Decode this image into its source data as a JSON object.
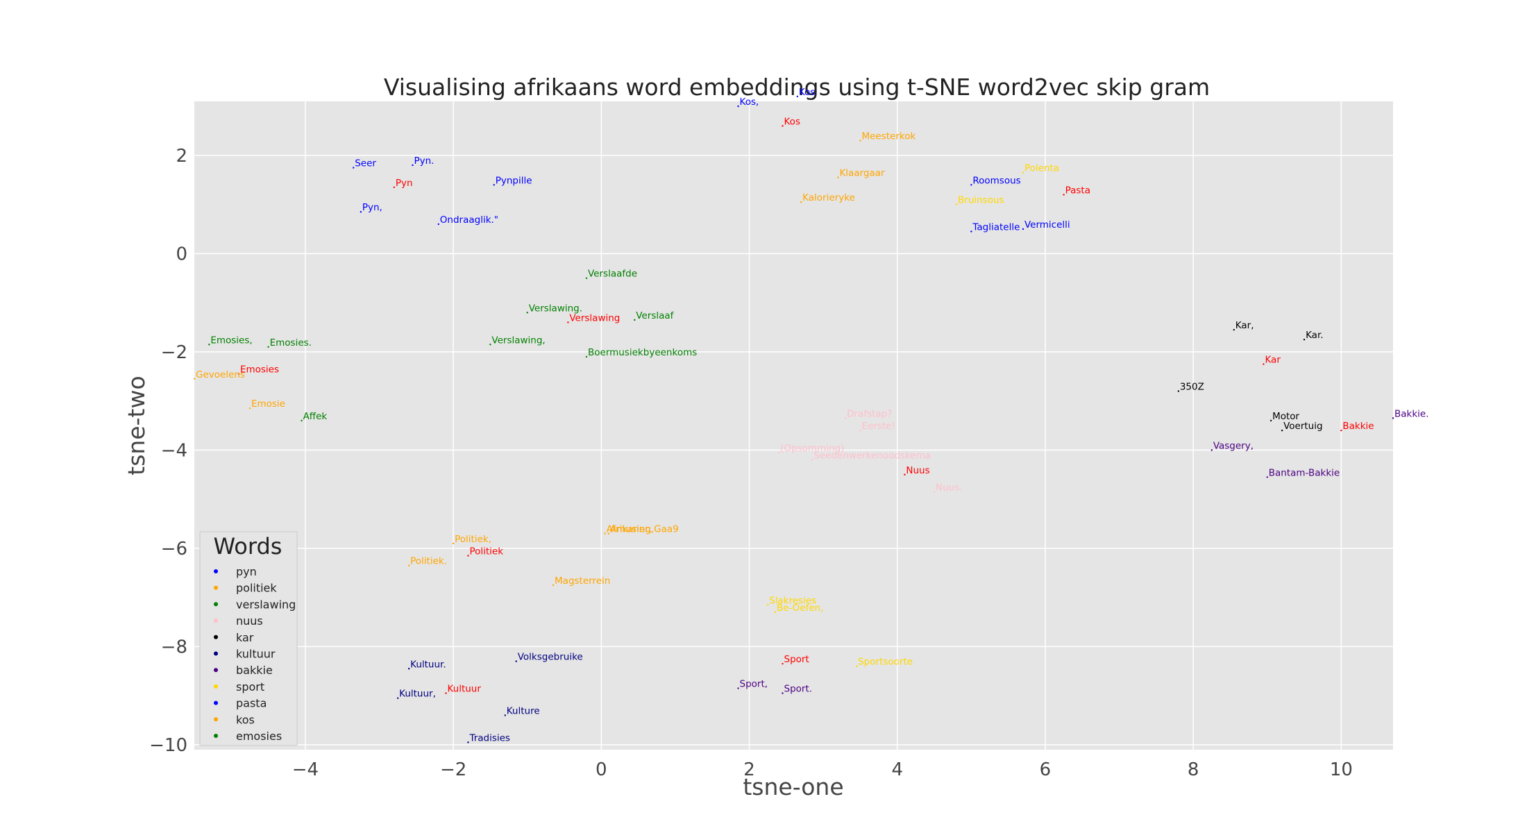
{
  "chart_data": {
    "type": "scatter",
    "title": "Visualising afrikaans word embeddings using t-SNE word2vec skip gram",
    "xlabel": "tsne-one",
    "ylabel": "tsne-two",
    "xlim": [
      -5.5,
      10.7
    ],
    "ylim": [
      -10.1,
      3.1
    ],
    "xticks": [
      -4,
      -2,
      0,
      2,
      4,
      6,
      8,
      10
    ],
    "yticks": [
      2,
      0,
      -2,
      -4,
      -6,
      -8,
      -10
    ],
    "xtick_labels": [
      "−4",
      "−2",
      "0",
      "2",
      "4",
      "6",
      "8",
      "10"
    ],
    "ytick_labels": [
      "2",
      "0",
      "−2",
      "−4",
      "−6",
      "−8",
      "−10"
    ],
    "grid": true,
    "background": "#e5e5e5",
    "legend": {
      "title": "Words",
      "position": "lower-left",
      "entries": [
        {
          "name": "pyn",
          "color": "#0000ff"
        },
        {
          "name": "politiek",
          "color": "#ffa500"
        },
        {
          "name": "verslawing",
          "color": "#008000"
        },
        {
          "name": "nuus",
          "color": "#ffc0cb"
        },
        {
          "name": "kar",
          "color": "#000000"
        },
        {
          "name": "kultuur",
          "color": "#000080"
        },
        {
          "name": "bakkie",
          "color": "#4b0082"
        },
        {
          "name": "sport",
          "color": "#ffd700"
        },
        {
          "name": "pasta",
          "color": "#0000ff"
        },
        {
          "name": "kos",
          "color": "#ffa500"
        },
        {
          "name": "emosies",
          "color": "#008000"
        }
      ]
    },
    "points": [
      {
        "label": "Kos,",
        "x": 1.85,
        "y": 3.0,
        "color": "#0000ff"
      },
      {
        "label": "Kos",
        "x": 2.65,
        "y": 3.2,
        "color": "#0000ff"
      },
      {
        "label": "Kos",
        "x": 2.45,
        "y": 2.6,
        "color": "#ff0000"
      },
      {
        "label": "Meesterkok",
        "x": 3.5,
        "y": 2.3,
        "color": "#ffa500"
      },
      {
        "label": "Seer",
        "x": -3.35,
        "y": 1.75,
        "color": "#0000ff"
      },
      {
        "label": "Pyn.",
        "x": -2.55,
        "y": 1.8,
        "color": "#0000ff"
      },
      {
        "label": "Pyn",
        "x": -2.8,
        "y": 1.35,
        "color": "#ff0000"
      },
      {
        "label": "Pynpille",
        "x": -1.45,
        "y": 1.4,
        "color": "#0000ff"
      },
      {
        "label": "Pyn,",
        "x": -3.25,
        "y": 0.85,
        "color": "#0000ff"
      },
      {
        "label": "Ondraaglik.\"",
        "x": -2.2,
        "y": 0.6,
        "color": "#0000ff"
      },
      {
        "label": "Klaargaar",
        "x": 3.2,
        "y": 1.55,
        "color": "#ffa500"
      },
      {
        "label": "Kalorieryke",
        "x": 2.7,
        "y": 1.05,
        "color": "#ffa500"
      },
      {
        "label": "Roomsous",
        "x": 5.0,
        "y": 1.4,
        "color": "#0000ff"
      },
      {
        "label": "Polenta",
        "x": 5.7,
        "y": 1.65,
        "color": "#ffd700"
      },
      {
        "label": "Bruinsous",
        "x": 4.8,
        "y": 1.0,
        "color": "#ffd700"
      },
      {
        "label": "Pasta",
        "x": 6.25,
        "y": 1.2,
        "color": "#ff0000"
      },
      {
        "label": "Tagliatelle",
        "x": 5.0,
        "y": 0.45,
        "color": "#0000ff"
      },
      {
        "label": "Vermicelli",
        "x": 5.7,
        "y": 0.5,
        "color": "#0000ff"
      },
      {
        "label": "Verslaafde",
        "x": -0.2,
        "y": -0.5,
        "color": "#008000"
      },
      {
        "label": "Verslawing.",
        "x": -1.0,
        "y": -1.2,
        "color": "#008000"
      },
      {
        "label": "Verslawing",
        "x": -0.45,
        "y": -1.4,
        "color": "#ff0000"
      },
      {
        "label": "Verslaaf",
        "x": 0.45,
        "y": -1.35,
        "color": "#008000"
      },
      {
        "label": "Verslawing,",
        "x": -1.5,
        "y": -1.85,
        "color": "#008000"
      },
      {
        "label": "Boermusiekbyeenkoms",
        "x": -0.2,
        "y": -2.1,
        "color": "#008000"
      },
      {
        "label": "Emosies,",
        "x": -5.3,
        "y": -1.85,
        "color": "#008000"
      },
      {
        "label": "Emosies.",
        "x": -4.5,
        "y": -1.9,
        "color": "#008000"
      },
      {
        "label": "Emosies",
        "x": -4.9,
        "y": -2.45,
        "color": "#ff0000"
      },
      {
        "label": "Gevoelens",
        "x": -5.5,
        "y": -2.55,
        "color": "#ffa500"
      },
      {
        "label": "Emosie",
        "x": -4.75,
        "y": -3.15,
        "color": "#ffa500"
      },
      {
        "label": "Affek",
        "x": -4.05,
        "y": -3.4,
        "color": "#008000"
      },
      {
        "label": "Kar,",
        "x": 8.55,
        "y": -1.55,
        "color": "#000000"
      },
      {
        "label": "Kar.",
        "x": 9.5,
        "y": -1.75,
        "color": "#000000"
      },
      {
        "label": "Kar",
        "x": 8.95,
        "y": -2.25,
        "color": "#ff0000"
      },
      {
        "label": "350Z",
        "x": 7.8,
        "y": -2.8,
        "color": "#000000"
      },
      {
        "label": "Motor",
        "x": 9.05,
        "y": -3.4,
        "color": "#000000"
      },
      {
        "label": "Voertuig",
        "x": 9.2,
        "y": -3.6,
        "color": "#000000"
      },
      {
        "label": "Bakkie",
        "x": 10.0,
        "y": -3.6,
        "color": "#ff0000"
      },
      {
        "label": "Bakkie.",
        "x": 10.7,
        "y": -3.35,
        "color": "#4b0082"
      },
      {
        "label": "Vasgery,",
        "x": 8.25,
        "y": -4.0,
        "color": "#4b0082"
      },
      {
        "label": "Bantam-Bakkie",
        "x": 9.0,
        "y": -4.55,
        "color": "#4b0082"
      },
      {
        "label": "Drafstap?",
        "x": 3.3,
        "y": -3.35,
        "color": "#ffc0cb"
      },
      {
        "label": "Eerste!",
        "x": 3.5,
        "y": -3.6,
        "color": "#ffc0cb"
      },
      {
        "label": "(Opsomming)",
        "x": 2.4,
        "y": -4.05,
        "color": "#ffc0cb"
      },
      {
        "label": "Seedenwerkenoodskema",
        "x": 2.85,
        "y": -4.2,
        "color": "#ffc0cb"
      },
      {
        "label": "Nuus",
        "x": 4.1,
        "y": -4.5,
        "color": "#ff0000"
      },
      {
        "label": "Nuus.",
        "x": 4.5,
        "y": -4.85,
        "color": "#ffc0cb"
      },
      {
        "label": "Afrikaner,",
        "x": 0.05,
        "y": -5.7,
        "color": "#ffa500"
      },
      {
        "label": "Amusing,Gaa9",
        "x": 0.1,
        "y": -5.7,
        "color": "#ffa500"
      },
      {
        "label": "Politiek,",
        "x": -2.0,
        "y": -5.9,
        "color": "#ffa500"
      },
      {
        "label": "Politiek",
        "x": -1.8,
        "y": -6.15,
        "color": "#ff0000"
      },
      {
        "label": "Politiek.",
        "x": -2.6,
        "y": -6.35,
        "color": "#ffa500"
      },
      {
        "label": "Magsterrein",
        "x": -0.65,
        "y": -6.75,
        "color": "#ffa500"
      },
      {
        "label": "Slakresies",
        "x": 2.25,
        "y": -7.15,
        "color": "#ffd700"
      },
      {
        "label": "Be-Oefen,",
        "x": 2.35,
        "y": -7.3,
        "color": "#ffd700"
      },
      {
        "label": "Volksgebruike",
        "x": -1.15,
        "y": -8.3,
        "color": "#000080"
      },
      {
        "label": "Kultuur.",
        "x": -2.6,
        "y": -8.45,
        "color": "#000080"
      },
      {
        "label": "Kultuur,",
        "x": -2.75,
        "y": -9.05,
        "color": "#000080"
      },
      {
        "label": "Kultuur",
        "x": -2.1,
        "y": -8.95,
        "color": "#ff0000"
      },
      {
        "label": "Kulture",
        "x": -1.3,
        "y": -9.4,
        "color": "#000080"
      },
      {
        "label": "Tradisies",
        "x": -1.8,
        "y": -9.95,
        "color": "#000080"
      },
      {
        "label": "Sport",
        "x": 2.45,
        "y": -8.35,
        "color": "#ff0000"
      },
      {
        "label": "Sportsoorte",
        "x": 3.45,
        "y": -8.4,
        "color": "#ffd700"
      },
      {
        "label": "Sport,",
        "x": 1.85,
        "y": -8.85,
        "color": "#4b0082"
      },
      {
        "label": "Sport.",
        "x": 2.45,
        "y": -8.95,
        "color": "#4b0082"
      }
    ]
  }
}
